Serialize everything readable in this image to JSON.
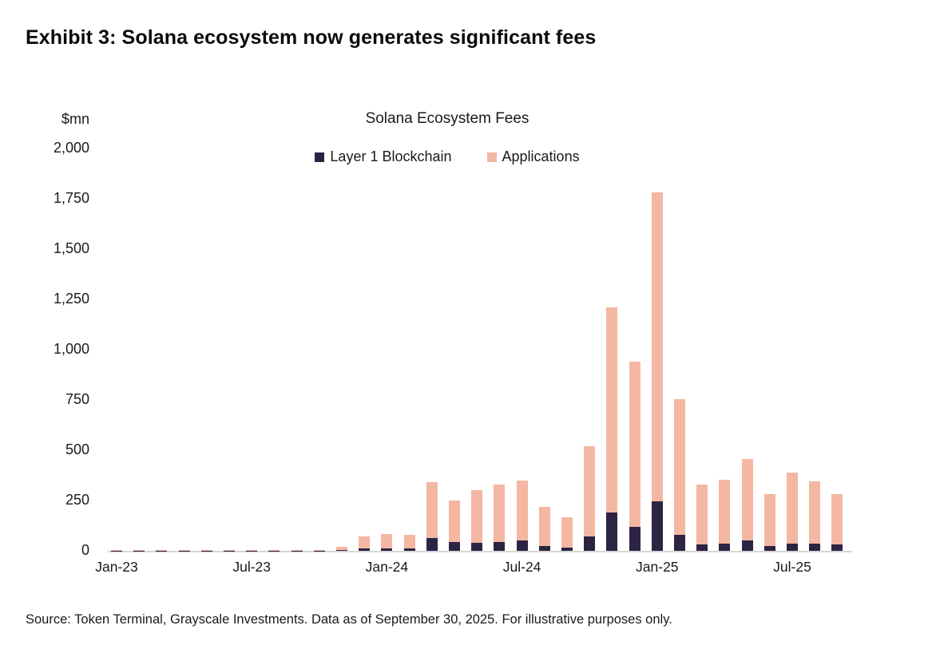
{
  "page": {
    "title": "Exhibit 3: Solana ecosystem now generates significant fees",
    "source": "Source: Token Terminal, Grayscale Investments. Data as of September 30, 2025. For illustrative purposes only."
  },
  "chart_data": {
    "type": "bar",
    "stacked": true,
    "title": "Solana Ecosystem Fees",
    "y_unit": "$mn",
    "ylabel": "Fees ($mn)",
    "xlabel": "",
    "ylim": [
      0,
      2000
    ],
    "ytick_step": 250,
    "ytick_labels": [
      "2,000",
      "1,750",
      "1,500",
      "1,250",
      "1,000",
      "750",
      "500",
      "250",
      "0"
    ],
    "grid": false,
    "legend_position": "top",
    "categories": [
      "Jan-23",
      "Feb-23",
      "Mar-23",
      "Apr-23",
      "May-23",
      "Jun-23",
      "Jul-23",
      "Aug-23",
      "Sep-23",
      "Oct-23",
      "Nov-23",
      "Dec-23",
      "Jan-24",
      "Feb-24",
      "Mar-24",
      "Apr-24",
      "May-24",
      "Jun-24",
      "Jul-24",
      "Aug-24",
      "Sep-24",
      "Oct-24",
      "Nov-24",
      "Dec-24",
      "Jan-25",
      "Feb-25",
      "Mar-25",
      "Apr-25",
      "May-25",
      "Jun-25",
      "Jul-25",
      "Aug-25",
      "Sep-25"
    ],
    "xticks_shown": [
      {
        "label": "Jan-23",
        "index": 0
      },
      {
        "label": "Jul-23",
        "index": 6
      },
      {
        "label": "Jan-24",
        "index": 12
      },
      {
        "label": "Jul-24",
        "index": 18
      },
      {
        "label": "Jan-25",
        "index": 24
      },
      {
        "label": "Jul-25",
        "index": 30
      }
    ],
    "series": [
      {
        "name": "Layer 1 Blockchain",
        "color": "#2d2342",
        "values": [
          1,
          1,
          1,
          1,
          1,
          1,
          1,
          1,
          1,
          1,
          3,
          10,
          12,
          12,
          65,
          45,
          40,
          45,
          50,
          25,
          15,
          70,
          190,
          120,
          245,
          80,
          30,
          35,
          50,
          25,
          35,
          35,
          30
        ]
      },
      {
        "name": "Applications",
        "color": "#f4b7a2",
        "values": [
          5,
          2,
          2,
          2,
          3,
          2,
          3,
          3,
          2,
          3,
          15,
          60,
          73,
          68,
          275,
          205,
          260,
          285,
          300,
          195,
          150,
          450,
          1020,
          820,
          1535,
          675,
          300,
          320,
          405,
          255,
          355,
          310,
          250
        ]
      }
    ],
    "totals": [
      6,
      3,
      3,
      3,
      4,
      3,
      4,
      4,
      3,
      4,
      18,
      70,
      85,
      80,
      340,
      250,
      300,
      330,
      350,
      220,
      165,
      520,
      1210,
      940,
      1780,
      755,
      330,
      355,
      455,
      280,
      390,
      345,
      280
    ]
  }
}
